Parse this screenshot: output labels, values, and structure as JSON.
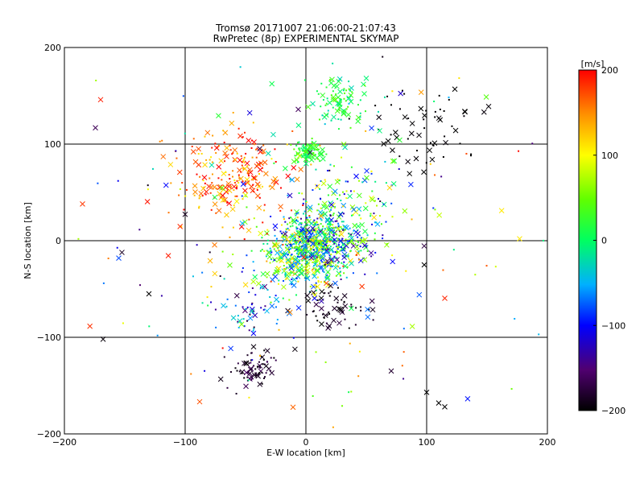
{
  "chart_data": {
    "type": "scatter",
    "title": "Tromsø 20171007 21:06:00-21:07:43",
    "subtitle": "RwPretec (8p) EXPERIMENTAL SKYMAP",
    "xlabel": "E-W location [km]",
    "ylabel": "N-S location [km]",
    "xlim": [
      -200,
      200
    ],
    "ylim": [
      -200,
      200
    ],
    "xticks": [
      -200,
      -100,
      0,
      100,
      200
    ],
    "yticks": [
      -200,
      -100,
      0,
      100,
      200
    ],
    "grid": true,
    "colorbar": {
      "label": "[m/s]",
      "range": [
        -200,
        200
      ],
      "ticks": [
        200,
        100,
        0,
        -100,
        -200
      ],
      "colormap": "rainbow (black-purple-blue-cyan-green-yellow-red)"
    },
    "marker_types": [
      "x",
      "dot"
    ],
    "clusters": [
      {
        "x": 0,
        "y": -10,
        "spread": 18,
        "count": 520,
        "velocity_mean": 20,
        "velocity_spread": 120
      },
      {
        "x": 20,
        "y": 5,
        "spread": 16,
        "count": 260,
        "velocity_mean": -30,
        "velocity_spread": 120
      },
      {
        "x": -60,
        "y": 70,
        "spread": 25,
        "count": 230,
        "velocity_mean": 160,
        "velocity_spread": 60
      },
      {
        "x": 0,
        "y": 92,
        "spread": 6,
        "count": 90,
        "velocity_mean": 20,
        "velocity_spread": 30
      },
      {
        "x": 30,
        "y": 145,
        "spread": 12,
        "count": 90,
        "velocity_mean": 10,
        "velocity_spread": 40
      },
      {
        "x": 100,
        "y": 115,
        "spread": 22,
        "count": 60,
        "velocity_mean": -200,
        "velocity_spread": 5
      },
      {
        "x": -42,
        "y": -132,
        "spread": 9,
        "count": 70,
        "velocity_mean": -180,
        "velocity_spread": 25
      },
      {
        "x": 22,
        "y": -70,
        "spread": 12,
        "count": 60,
        "velocity_mean": -190,
        "velocity_spread": 20
      },
      {
        "x": -45,
        "y": -75,
        "spread": 15,
        "count": 50,
        "velocity_mean": -100,
        "velocity_spread": 80
      },
      {
        "x": 40,
        "y": 50,
        "spread": 20,
        "count": 80,
        "velocity_mean": 0,
        "velocity_spread": 120
      },
      {
        "x": 0,
        "y": 0,
        "spread": 85,
        "count": 230,
        "velocity_mean": 0,
        "velocity_spread": 200
      }
    ],
    "notable_points": [
      {
        "x": 100,
        "y": -157,
        "v": -200
      },
      {
        "x": 110,
        "y": -168,
        "v": -200
      },
      {
        "x": 115,
        "y": -172,
        "v": -200
      },
      {
        "x": 98,
        "y": -25,
        "v": -200
      },
      {
        "x": -185,
        "y": 38,
        "v": 180
      },
      {
        "x": -170,
        "y": 146,
        "v": 190
      },
      {
        "x": -155,
        "y": -18,
        "v": -80
      },
      {
        "x": -130,
        "y": -55,
        "v": -200
      },
      {
        "x": 177,
        "y": 2,
        "v": 110
      }
    ]
  }
}
